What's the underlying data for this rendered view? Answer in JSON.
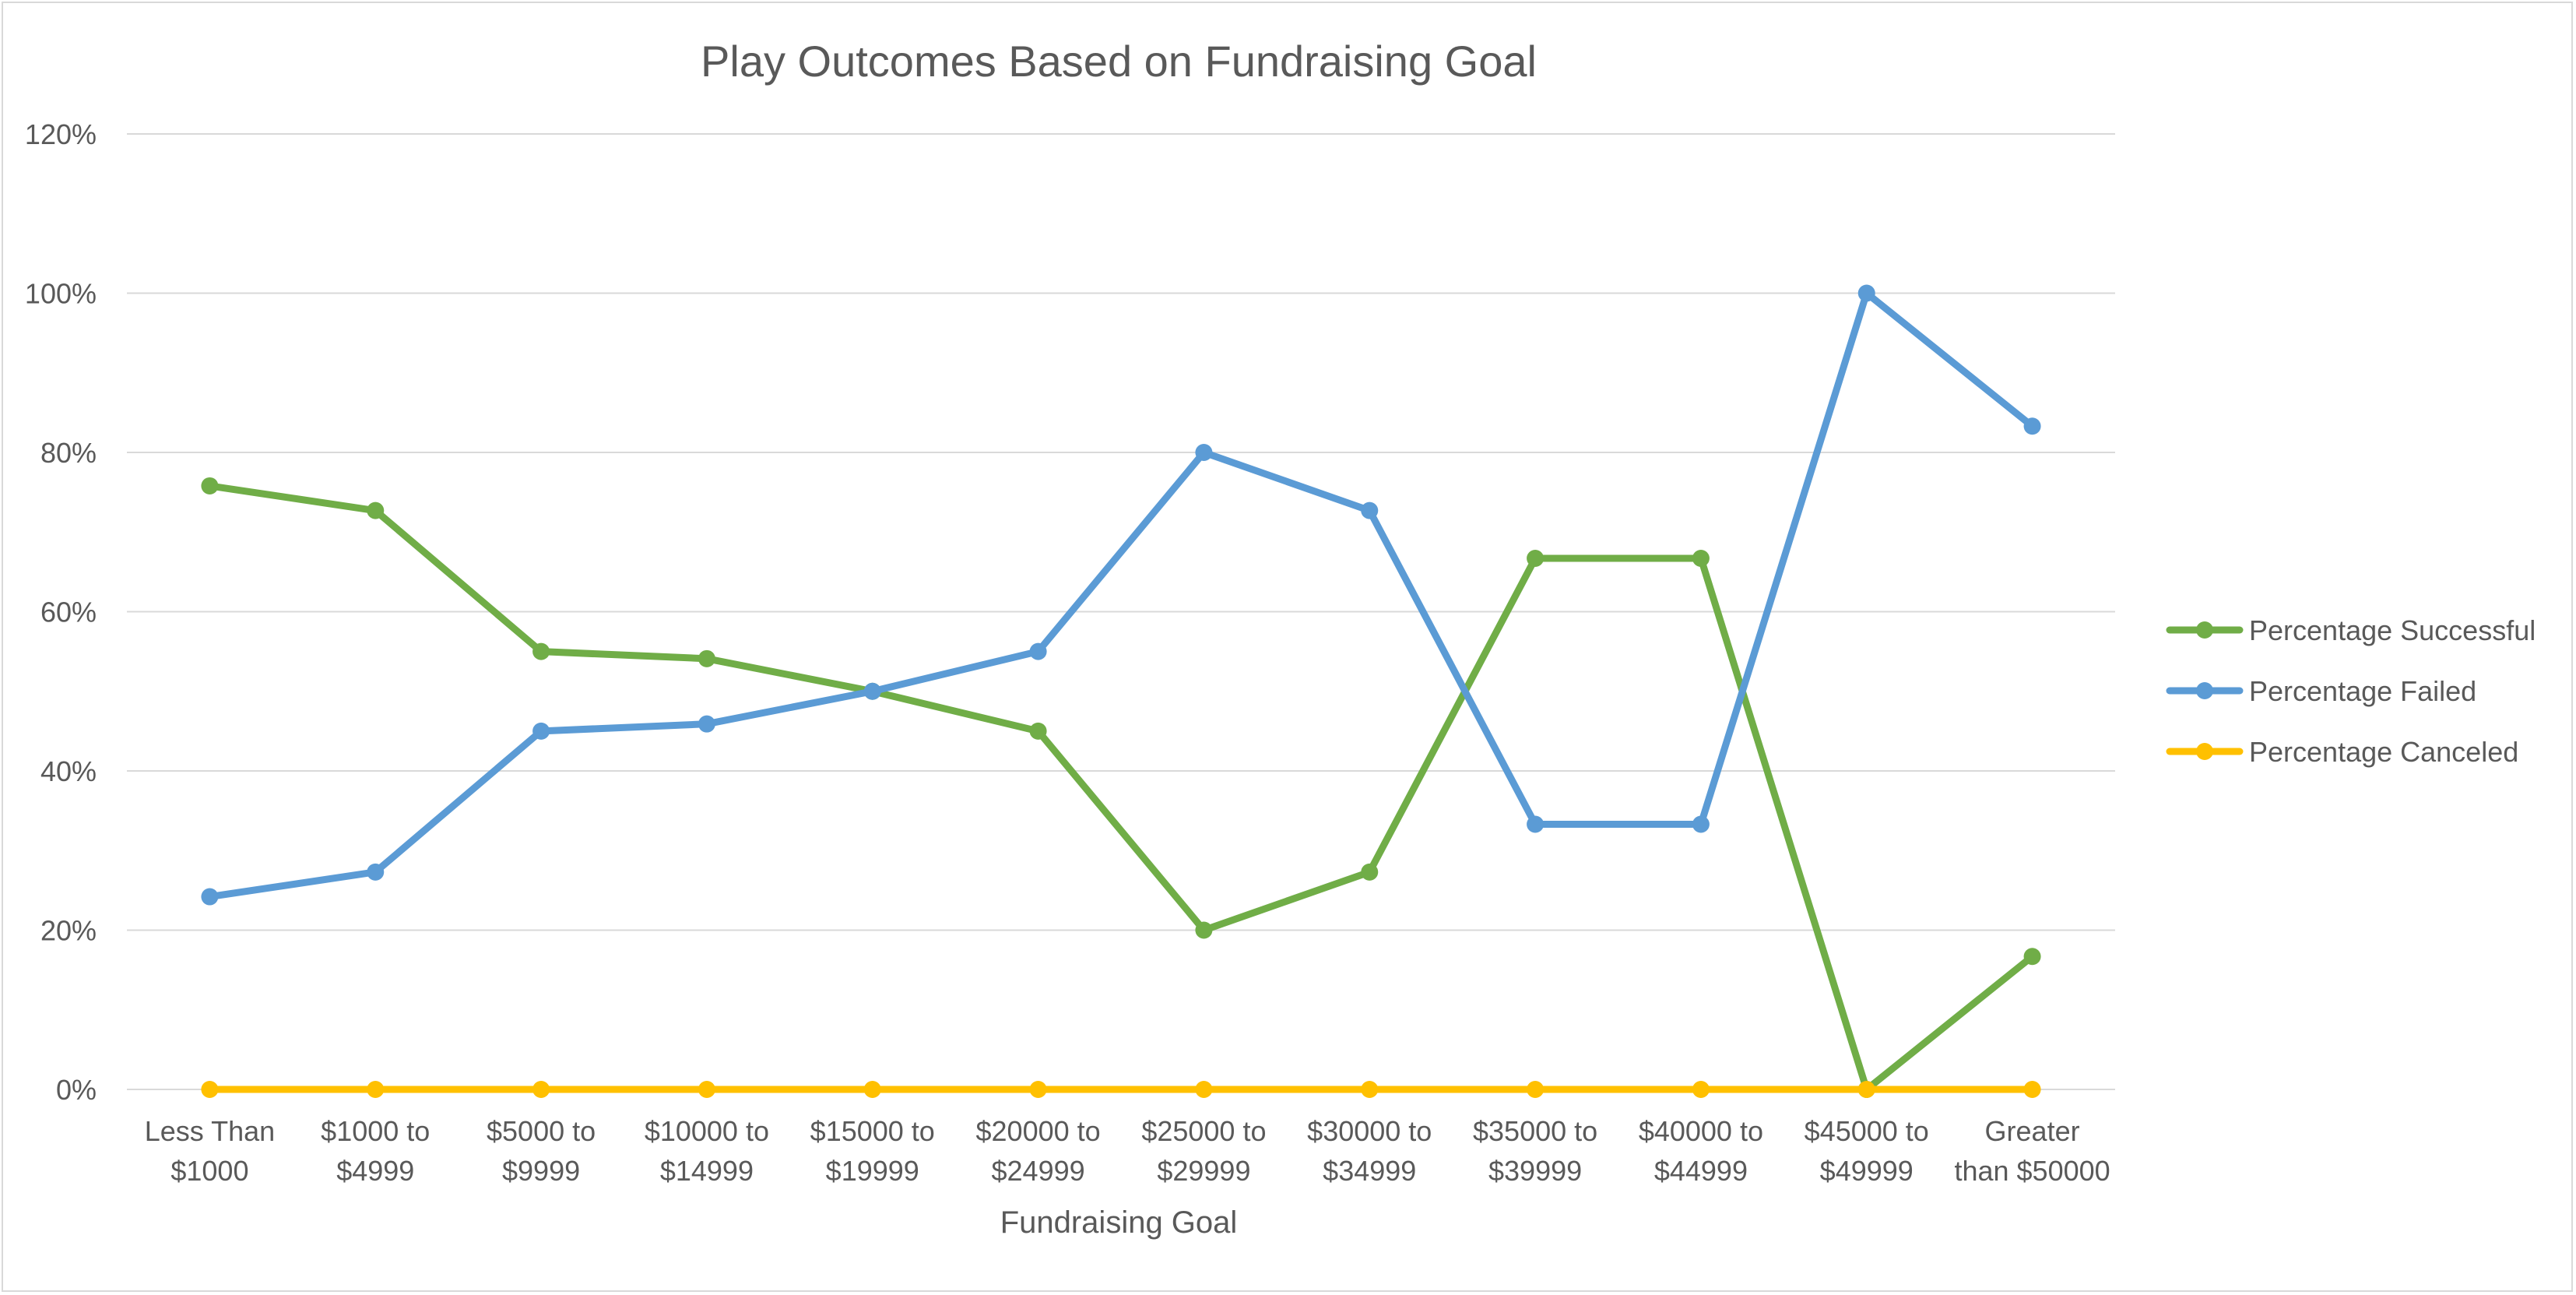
{
  "chart_data": {
    "type": "line",
    "title": "Play Outcomes Based on Fundraising Goal",
    "xlabel": "Fundraising Goal",
    "ylabel": "",
    "ylim": [
      0,
      1.2
    ],
    "ytick_values": [
      0,
      0.2,
      0.4,
      0.6,
      0.8,
      1.0,
      1.2
    ],
    "ytick_labels": [
      "0%",
      "20%",
      "40%",
      "60%",
      "80%",
      "100%",
      "120%"
    ],
    "grid": true,
    "legend_position": "right",
    "categories": [
      [
        "Less Than",
        "$1000"
      ],
      [
        "$1000 to",
        "$4999"
      ],
      [
        "$5000 to",
        "$9999"
      ],
      [
        "$10000 to",
        "$14999"
      ],
      [
        "$15000 to",
        "$19999"
      ],
      [
        "$20000 to",
        "$24999"
      ],
      [
        "$25000 to",
        "$29999"
      ],
      [
        "$30000 to",
        "$34999"
      ],
      [
        "$35000 to",
        "$39999"
      ],
      [
        "$40000 to",
        "$44999"
      ],
      [
        "$45000 to",
        "$49999"
      ],
      [
        "Greater",
        "than $50000"
      ]
    ],
    "series": [
      {
        "name": "Percentage Successful",
        "color": "#70ad47",
        "values": [
          0.758,
          0.727,
          0.55,
          0.541,
          0.5,
          0.45,
          0.2,
          0.273,
          0.667,
          0.667,
          0.0,
          0.167
        ]
      },
      {
        "name": "Percentage Failed",
        "color": "#5b9bd5",
        "values": [
          0.242,
          0.273,
          0.45,
          0.459,
          0.5,
          0.55,
          0.8,
          0.727,
          0.333,
          0.333,
          1.0,
          0.833
        ]
      },
      {
        "name": "Percentage Canceled",
        "color": "#ffc000",
        "values": [
          0,
          0,
          0,
          0,
          0,
          0,
          0,
          0,
          0,
          0,
          0,
          0
        ]
      }
    ]
  }
}
